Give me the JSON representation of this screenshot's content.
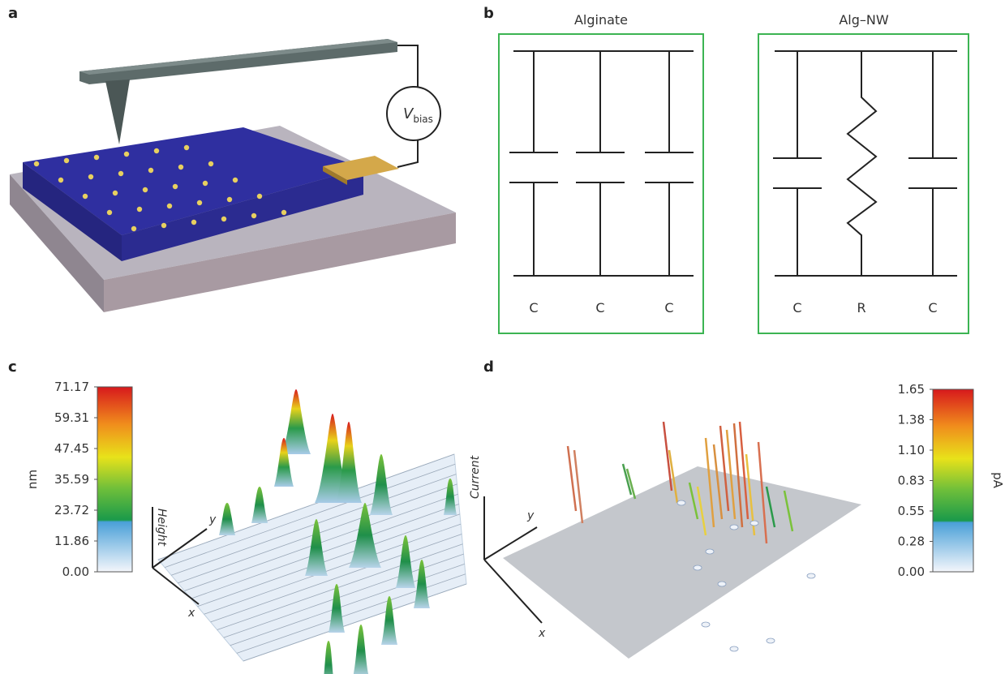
{
  "panels": [
    {
      "label": "a",
      "bias_label": {
        "main": "V",
        "sub": "bias"
      }
    },
    {
      "label": "b",
      "circuits": [
        {
          "title": "Alginate",
          "elements": [
            "C",
            "C",
            "C"
          ]
        },
        {
          "title": "Alg–NW",
          "elements": [
            "C",
            "R",
            "C"
          ]
        }
      ]
    },
    {
      "label": "c",
      "colorbar": {
        "unit": "nm",
        "ticks": [
          "71.17",
          "59.31",
          "47.45",
          "35.59",
          "23.72",
          "11.86",
          "0.00"
        ]
      },
      "axes": {
        "z": "Height",
        "y": "y",
        "x": "x"
      }
    },
    {
      "label": "d",
      "colorbar": {
        "unit": "pA",
        "ticks": [
          "1.65",
          "1.38",
          "1.10",
          "0.83",
          "0.55",
          "0.28",
          "0.00"
        ]
      },
      "axes": {
        "z": "Current",
        "y": "y",
        "x": "x"
      }
    }
  ]
}
